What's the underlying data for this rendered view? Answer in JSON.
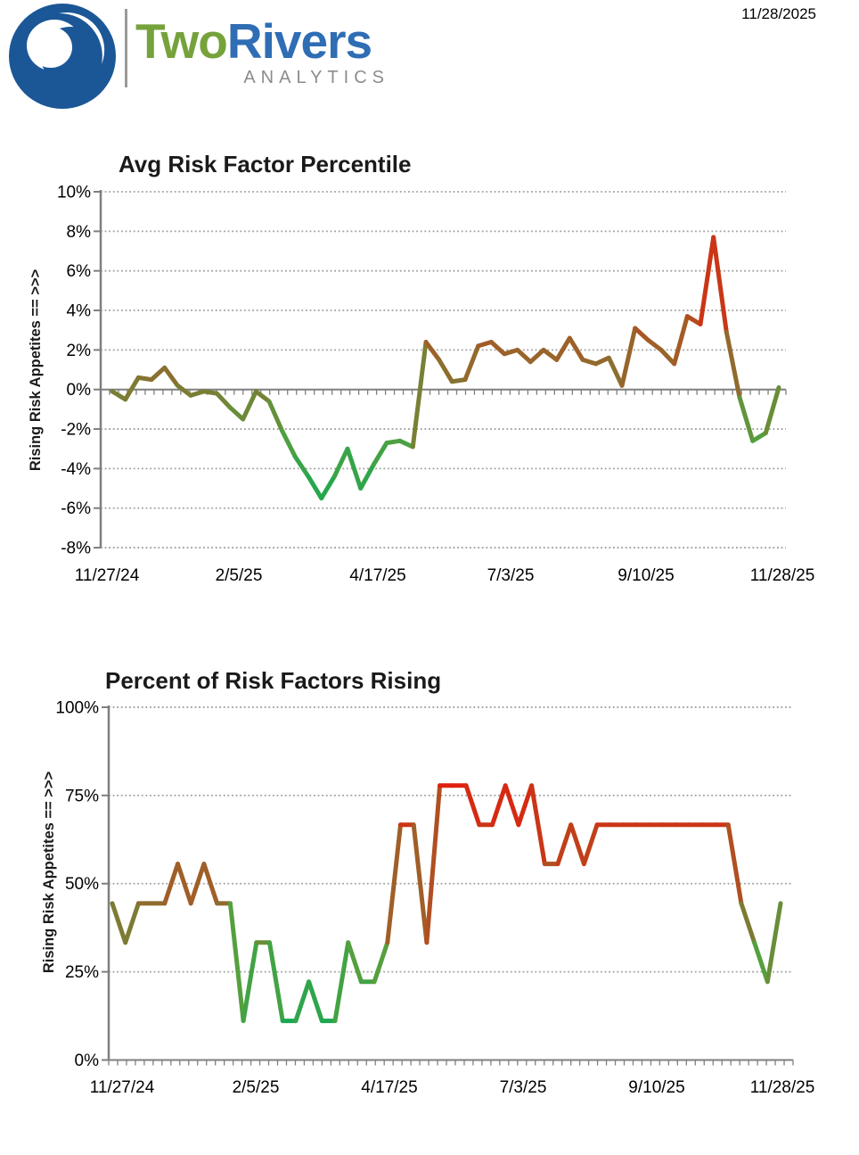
{
  "header": {
    "brand_word_1": "Two",
    "brand_word_2": "Rivers",
    "brand_subtitle": "ANALYTICS",
    "report_date": "11/28/2025",
    "logo_icon": "crescent-globe-icon"
  },
  "colors": {
    "logo_blue": "#1B5796",
    "brand_green": "#76A23C",
    "brand_blue": "#2F6DB4",
    "brand_gray": "#8C8C8C",
    "axis_gray": "#7F7F7F",
    "grid_gray": "#A0A0A0",
    "scale_low_green": "#1CA851",
    "scale_mid_olive": "#857431",
    "scale_high_red": "#E02010"
  },
  "chart_data": [
    {
      "type": "line",
      "title": "Avg Risk Factor Percentile",
      "xlabel": "",
      "ylabel": "Rising Risk Appetites == >>>",
      "unit": "%",
      "ylim": [
        -8,
        10
      ],
      "y_tick_values": [
        10,
        8,
        6,
        4,
        2,
        0,
        -2,
        -4,
        -6,
        -8
      ],
      "y_tick_labels": [
        "10%",
        "8%",
        "6%",
        "4%",
        "2%",
        "0%",
        "-2%",
        "-4%",
        "-6%",
        "-8%"
      ],
      "x_tick_labels": [
        "11/27/24",
        "2/5/25",
        "4/17/25",
        "7/3/25",
        "9/10/25",
        "11/28/25"
      ],
      "grid": "dotted horizontal gridlines, solid zero axis with minor date ticks",
      "legend": "none",
      "line_style": "single series, color graded from green (low / falling risk appetite) to red (high / rising risk appetite)",
      "values": [
        -0.1,
        -0.5,
        0.6,
        0.5,
        1.1,
        0.2,
        -0.3,
        -0.1,
        -0.2,
        -0.9,
        -1.5,
        -0.1,
        -0.6,
        -2.1,
        -3.4,
        -4.4,
        -5.5,
        -4.4,
        -3.0,
        -5.0,
        -3.8,
        -2.7,
        -2.6,
        -2.9,
        2.4,
        1.5,
        0.4,
        0.5,
        2.2,
        2.4,
        1.8,
        2.0,
        1.4,
        2.0,
        1.5,
        2.6,
        1.5,
        1.3,
        1.6,
        0.2,
        3.1,
        2.5,
        2.0,
        1.3,
        3.7,
        3.3,
        7.7,
        2.9,
        -0.4,
        -2.6,
        -2.2,
        0.1
      ]
    },
    {
      "type": "line",
      "title": "Percent of Risk Factors Rising",
      "xlabel": "",
      "ylabel": "Rising Risk Appetites == >>>",
      "unit": "%",
      "ylim": [
        0,
        100
      ],
      "y_tick_values": [
        100,
        75,
        50,
        25,
        0
      ],
      "y_tick_labels": [
        "100%",
        "75%",
        "50%",
        "25%",
        "0%"
      ],
      "x_tick_labels": [
        "11/27/24",
        "2/5/25",
        "4/17/25",
        "7/3/25",
        "9/10/25",
        "11/28/25"
      ],
      "grid": "dotted horizontal gridlines, solid bottom axis with minor date ticks",
      "legend": "none",
      "line_style": "single series in ninths (9 risk factors), color graded green (low) to red (high)",
      "values": [
        44.4,
        33.3,
        44.4,
        44.4,
        44.4,
        55.6,
        44.4,
        55.6,
        44.4,
        44.4,
        11.1,
        33.3,
        33.3,
        11.1,
        11.1,
        22.2,
        11.1,
        11.1,
        33.3,
        22.2,
        22.2,
        33.3,
        66.7,
        66.7,
        33.3,
        77.8,
        77.8,
        77.8,
        66.7,
        66.7,
        77.8,
        66.7,
        77.8,
        55.6,
        55.6,
        66.7,
        55.6,
        66.7,
        66.7,
        66.7,
        66.7,
        66.7,
        66.7,
        66.7,
        66.7,
        66.7,
        66.7,
        66.7,
        44.4,
        33.3,
        22.2,
        44.4
      ]
    }
  ]
}
